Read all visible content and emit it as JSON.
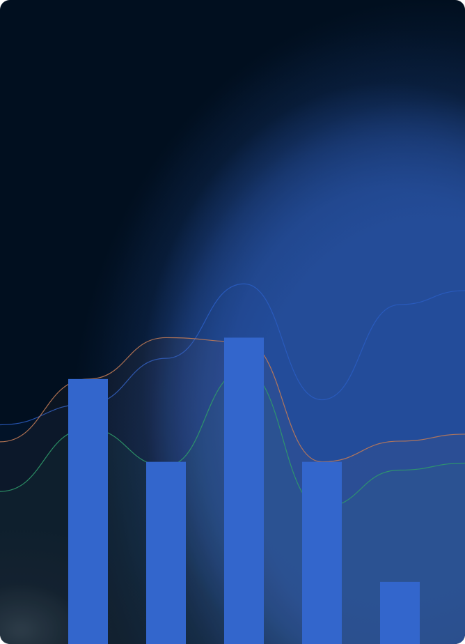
{
  "colors": {
    "background": "#010f1f",
    "glow": "#26509e",
    "bar": "#3366cc",
    "line_blue": "#2a5cc0",
    "line_orange": "#c07a55",
    "line_green": "#2f9a6a"
  },
  "chart_data": {
    "type": "bar",
    "title": "",
    "xlabel": "",
    "ylabel": "",
    "categories": [
      "",
      "",
      "",
      "",
      ""
    ],
    "values": [
      64,
      44,
      74,
      44,
      15
    ],
    "ylim": [
      0,
      100
    ],
    "overlay_lines": [
      {
        "color": "#2a5cc0",
        "values": [
          58,
          69,
          87,
          59,
          82
        ]
      },
      {
        "color": "#c07a55",
        "values": [
          64,
          74,
          73,
          44,
          49
        ]
      },
      {
        "color": "#2f9a6a",
        "values": [
          52,
          43,
          66,
          33,
          42
        ]
      }
    ],
    "grid": false,
    "legend": "none"
  }
}
